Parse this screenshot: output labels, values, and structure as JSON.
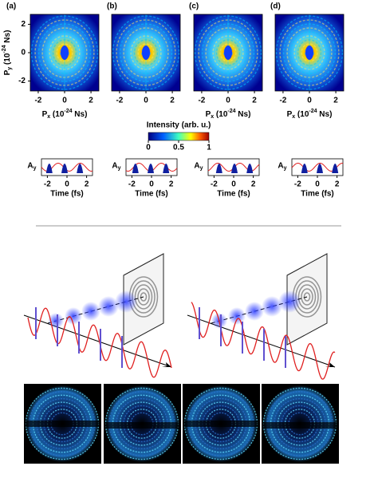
{
  "momentum_panels": [
    {
      "label": "(a)",
      "xlabel": [
        "P",
        "x",
        " (10",
        "-24",
        " Ns)"
      ],
      "ylabel": [
        "P",
        "y",
        " (10",
        "-24",
        " Ns)"
      ],
      "xticks": [
        -2,
        0,
        2
      ],
      "yticks": [
        2,
        0,
        -2
      ]
    },
    {
      "label": "(b)",
      "xticks": [
        -2,
        0,
        2
      ]
    },
    {
      "label": "(c)",
      "xlabel": [
        "P",
        "x",
        " (10",
        "-24",
        " Ns)"
      ],
      "xticks": [
        -2,
        0,
        2
      ]
    },
    {
      "label": "(d)",
      "xlabel": [
        "P",
        "x",
        " (10",
        "-24",
        " Ns)"
      ],
      "xticks": [
        -2,
        0,
        2
      ]
    }
  ],
  "momentum_xlim": [
    -2.6,
    2.6
  ],
  "momentum_ylim": [
    -2.7,
    2.7
  ],
  "colorbar": {
    "label": "Intensity (arb. u.)",
    "ticks": [
      0,
      0.5,
      1
    ],
    "lim": [
      0,
      1
    ]
  },
  "pulse_panels": [
    {
      "ylabel": [
        "A",
        "y"
      ],
      "xlabel": "Time (fs)",
      "xticks": [
        -2,
        0,
        2
      ]
    },
    {
      "ylabel": [
        "A",
        "y"
      ],
      "xlabel": "Time (fs)",
      "xticks": [
        -2,
        0,
        2
      ]
    },
    {
      "ylabel": [
        "A",
        "y"
      ],
      "xlabel": "Time (fs)",
      "xticks": [
        -2,
        0,
        2
      ]
    },
    {
      "ylabel": [
        "A",
        "y"
      ],
      "xlabel": "Time (fs)",
      "xticks": [
        -2,
        0,
        2
      ]
    }
  ],
  "pulse_xlim": [
    -2.6,
    2.6
  ]
}
